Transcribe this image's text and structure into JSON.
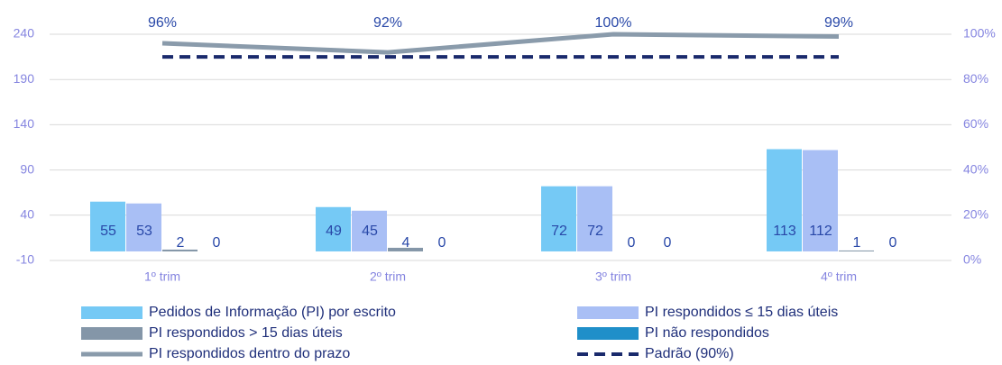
{
  "chart_data": {
    "type": "bar",
    "categories": [
      "1º trim",
      "2º trim",
      "3º trim",
      "4º trim"
    ],
    "series": [
      {
        "name": "Pedidos de Informação (PI) por escrito",
        "color": "#75c9f5",
        "values": [
          55,
          49,
          72,
          113
        ]
      },
      {
        "name": "PI respondidos ≤ 15 dias úteis",
        "color": "#a9bff5",
        "values": [
          53,
          45,
          72,
          112
        ]
      },
      {
        "name": "PI respondidos > 15 dias úteis",
        "color": "#8496a8",
        "values": [
          2,
          4,
          0,
          1
        ]
      },
      {
        "name": "PI não respondidos",
        "color": "#1f8fc9",
        "values": [
          0,
          0,
          0,
          0
        ]
      },
      {
        "name": "PI respondidos dentro do prazo",
        "color": "#8a9bab",
        "type": "line",
        "axis": "y2",
        "values": [
          96,
          92,
          100,
          99
        ],
        "value_labels": [
          "96%",
          "92%",
          "100%",
          "99%"
        ]
      },
      {
        "name": "Padrão (90%)",
        "color": "#1a2a6c",
        "type": "line",
        "axis": "y2",
        "dashed": true,
        "values": [
          90,
          90,
          90,
          90
        ]
      }
    ],
    "ylim": [
      -10,
      240
    ],
    "yticks": [
      -10,
      40,
      90,
      140,
      190,
      240
    ],
    "y2lim": [
      0,
      100
    ],
    "y2ticks": [
      {
        "value": 0,
        "label": "0%"
      },
      {
        "value": 20,
        "label": "20%"
      },
      {
        "value": 40,
        "label": "40%"
      },
      {
        "value": 60,
        "label": "60%"
      },
      {
        "value": 80,
        "label": "80%"
      },
      {
        "value": 100,
        "label": "100%"
      }
    ],
    "grid": true,
    "legend": "bottom"
  }
}
